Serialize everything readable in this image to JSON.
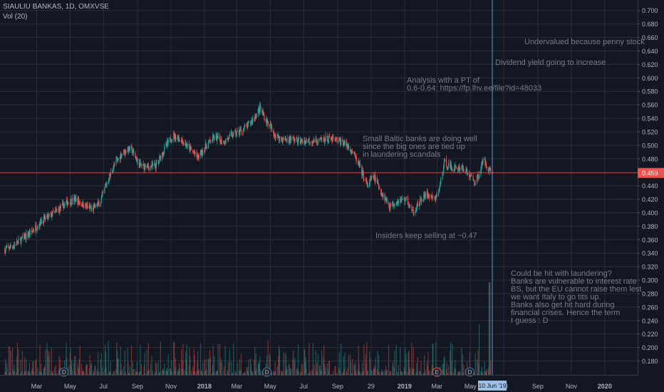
{
  "header": {
    "symbol": "SIAULIU BANKAS, 1D, OMXVSE",
    "volume_label": "Vol (20)"
  },
  "price_label": "0.459",
  "date_label": "10 Jun '19",
  "annotations": {
    "undervalued": "Undervalued because penny stock",
    "dividend": "Dividend yield going to increase",
    "analysis": "Analysis with a PT of\n0.6-0.64: https://fp.lhv.ee/file?id=48033",
    "baltic": "Small Baltic banks are doing well\nsince the big ones are tied up\nin laundering scandals",
    "insiders": "Insiders keep selling at ~0.47",
    "laundering": "Could be hit with laundering?\nBanks are vulnerable to interest rate\nBS, but the EU cannot raise them lest\nwe want Italy to go tits up.\nBanks also get hit hard during\nfinancial crises. Hence the term\nI guess : D"
  },
  "event_markers": [
    {
      "label": "D"
    },
    {
      "label": "D"
    },
    {
      "label": "E"
    },
    {
      "label": "D"
    }
  ],
  "colors": {
    "background": "#131722",
    "up": "#26a69a",
    "down": "#ef5350",
    "grid": "#2a2e39",
    "axis_text": "#b2b5be",
    "annotation_text": "#787b86",
    "price_line": "#ef5350",
    "crosshair": "#5d9bd1",
    "date_label_bg": "#9dc1e6"
  },
  "chart_data": {
    "type": "candlestick",
    "title": "SIAULIU BANKAS, 1D, OMXVSE",
    "y_axis": {
      "position": "right",
      "ylim": [
        0.17,
        0.705
      ],
      "ticks": [
        0.18,
        0.2,
        0.22,
        0.24,
        0.26,
        0.28,
        0.3,
        0.32,
        0.34,
        0.36,
        0.38,
        0.4,
        0.42,
        0.44,
        0.46,
        0.48,
        0.5,
        0.52,
        0.54,
        0.56,
        0.58,
        0.6,
        0.62,
        0.64,
        0.66,
        0.68,
        0.7
      ],
      "tick_labels": [
        "0.180",
        "0.200",
        "0.220",
        "0.240",
        "0.260",
        "0.280",
        "0.300",
        "0.320",
        "0.340",
        "0.360",
        "0.380",
        "0.400",
        "0.420",
        "0.440",
        "0.460",
        "0.480",
        "0.500",
        "0.520",
        "0.540",
        "0.560",
        "0.580",
        "0.600",
        "0.620",
        "0.640",
        "0.660",
        "0.680",
        "0.700"
      ]
    },
    "x_axis": {
      "tick_labels": [
        "Mar",
        "May",
        "Jul",
        "Sep",
        "Nov",
        "2018",
        "Mar",
        "May",
        "Jul",
        "Sep",
        "29",
        "2019",
        "Mar",
        "May",
        "Jul",
        "Sep",
        "Nov",
        "2020"
      ],
      "tick_dates": [
        "2017-03-01",
        "2017-05-01",
        "2017-07-01",
        "2017-09-01",
        "2017-11-01",
        "2018-01-01",
        "2018-03-01",
        "2018-05-01",
        "2018-07-01",
        "2018-09-01",
        "2018-11-01",
        "2019-01-01",
        "2019-03-01",
        "2019-05-01",
        "2019-07-01",
        "2019-09-01",
        "2019-11-01",
        "2020-01-01"
      ],
      "range": [
        "2017-01-01",
        "2020-03-01"
      ]
    },
    "last_price": 0.459,
    "crosshair_date": "2019-06-10",
    "price_path": [
      {
        "date": "2017-01-01",
        "price": 0.345
      },
      {
        "date": "2017-01-15",
        "price": 0.35
      },
      {
        "date": "2017-02-01",
        "price": 0.36
      },
      {
        "date": "2017-02-20",
        "price": 0.372
      },
      {
        "date": "2017-03-10",
        "price": 0.388
      },
      {
        "date": "2017-03-25",
        "price": 0.395
      },
      {
        "date": "2017-04-10",
        "price": 0.405
      },
      {
        "date": "2017-04-25",
        "price": 0.415
      },
      {
        "date": "2017-05-10",
        "price": 0.42
      },
      {
        "date": "2017-05-25",
        "price": 0.412
      },
      {
        "date": "2017-06-10",
        "price": 0.405
      },
      {
        "date": "2017-06-25",
        "price": 0.415
      },
      {
        "date": "2017-07-05",
        "price": 0.44
      },
      {
        "date": "2017-07-20",
        "price": 0.47
      },
      {
        "date": "2017-08-05",
        "price": 0.49
      },
      {
        "date": "2017-08-20",
        "price": 0.495
      },
      {
        "date": "2017-09-05",
        "price": 0.47
      },
      {
        "date": "2017-09-20",
        "price": 0.468
      },
      {
        "date": "2017-10-05",
        "price": 0.47
      },
      {
        "date": "2017-10-20",
        "price": 0.495
      },
      {
        "date": "2017-11-05",
        "price": 0.515
      },
      {
        "date": "2017-11-20",
        "price": 0.508
      },
      {
        "date": "2017-12-05",
        "price": 0.495
      },
      {
        "date": "2017-12-20",
        "price": 0.482
      },
      {
        "date": "2018-01-05",
        "price": 0.5
      },
      {
        "date": "2018-01-20",
        "price": 0.512
      },
      {
        "date": "2018-02-05",
        "price": 0.505
      },
      {
        "date": "2018-02-20",
        "price": 0.515
      },
      {
        "date": "2018-03-05",
        "price": 0.52
      },
      {
        "date": "2018-03-20",
        "price": 0.528
      },
      {
        "date": "2018-04-05",
        "price": 0.545
      },
      {
        "date": "2018-04-12",
        "price": 0.555
      },
      {
        "date": "2018-04-25",
        "price": 0.535
      },
      {
        "date": "2018-05-10",
        "price": 0.515
      },
      {
        "date": "2018-05-25",
        "price": 0.508
      },
      {
        "date": "2018-06-10",
        "price": 0.51
      },
      {
        "date": "2018-06-25",
        "price": 0.505
      },
      {
        "date": "2018-07-10",
        "price": 0.508
      },
      {
        "date": "2018-07-25",
        "price": 0.505
      },
      {
        "date": "2018-08-10",
        "price": 0.51
      },
      {
        "date": "2018-08-25",
        "price": 0.508
      },
      {
        "date": "2018-09-10",
        "price": 0.505
      },
      {
        "date": "2018-09-25",
        "price": 0.495
      },
      {
        "date": "2018-10-10",
        "price": 0.47
      },
      {
        "date": "2018-10-25",
        "price": 0.44
      },
      {
        "date": "2018-11-05",
        "price": 0.455
      },
      {
        "date": "2018-11-20",
        "price": 0.43
      },
      {
        "date": "2018-12-05",
        "price": 0.41
      },
      {
        "date": "2018-12-20",
        "price": 0.418
      },
      {
        "date": "2019-01-05",
        "price": 0.42
      },
      {
        "date": "2019-01-15",
        "price": 0.4
      },
      {
        "date": "2019-01-28",
        "price": 0.415
      },
      {
        "date": "2019-02-10",
        "price": 0.428
      },
      {
        "date": "2019-02-25",
        "price": 0.418
      },
      {
        "date": "2019-03-05",
        "price": 0.435
      },
      {
        "date": "2019-03-15",
        "price": 0.475
      },
      {
        "date": "2019-03-30",
        "price": 0.465
      },
      {
        "date": "2019-04-15",
        "price": 0.468
      },
      {
        "date": "2019-04-30",
        "price": 0.455
      },
      {
        "date": "2019-05-10",
        "price": 0.445
      },
      {
        "date": "2019-05-18",
        "price": 0.46
      },
      {
        "date": "2019-05-25",
        "price": 0.48
      },
      {
        "date": "2019-06-01",
        "price": 0.468
      },
      {
        "date": "2019-06-10",
        "price": 0.459
      }
    ],
    "volume_spikes": [
      {
        "date": "2019-05-18",
        "volume_level": 0.55
      },
      {
        "date": "2019-06-05",
        "volume_level": 1.0
      }
    ]
  }
}
